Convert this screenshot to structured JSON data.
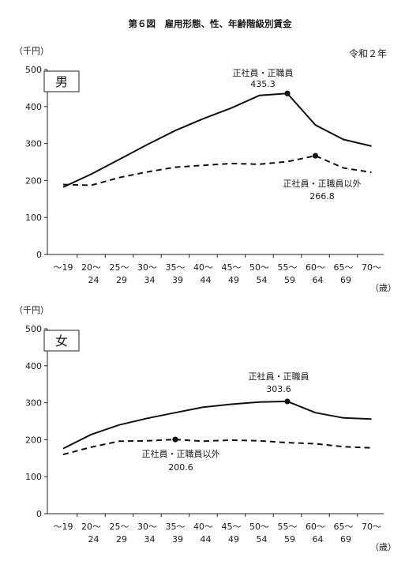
{
  "figure": {
    "title": "第６図　雇用形態、性、年齢階級別賃金",
    "year": "令和２年"
  },
  "chart_data": [
    {
      "type": "line",
      "panel_label": "男",
      "ylabel": "（千円）",
      "xlabel": "（歳）",
      "ylim": [
        0,
        500
      ],
      "yticks": [
        0,
        100,
        200,
        300,
        400,
        500
      ],
      "categories": [
        {
          "line1": "～19",
          "line2": ""
        },
        {
          "line1": "20～",
          "line2": "24"
        },
        {
          "line1": "25～",
          "line2": "29"
        },
        {
          "line1": "30～",
          "line2": "34"
        },
        {
          "line1": "35～",
          "line2": "39"
        },
        {
          "line1": "40～",
          "line2": "44"
        },
        {
          "line1": "45～",
          "line2": "49"
        },
        {
          "line1": "50～",
          "line2": "54"
        },
        {
          "line1": "55～",
          "line2": "59"
        },
        {
          "line1": "60～",
          "line2": "64"
        },
        {
          "line1": "65～",
          "line2": "69"
        },
        {
          "line1": "70～",
          "line2": ""
        }
      ],
      "series": [
        {
          "name": "正社員・正職員",
          "style": "solid",
          "color": "#111111",
          "values": [
            182,
            217,
            257,
            297,
            335,
            367,
            396,
            430,
            435.3,
            350,
            311,
            293
          ],
          "peak_index": 8,
          "peak_label": "435.3"
        },
        {
          "name": "正社員・正職員以外",
          "style": "dashed",
          "color": "#111111",
          "values": [
            189,
            187,
            208,
            223,
            236,
            241,
            246,
            244,
            251,
            266.8,
            234,
            222
          ],
          "peak_index": 9,
          "peak_label": "266.8"
        }
      ]
    },
    {
      "type": "line",
      "panel_label": "女",
      "ylabel": "（千円）",
      "xlabel": "（歳）",
      "ylim": [
        0,
        500
      ],
      "yticks": [
        0,
        100,
        200,
        300,
        400,
        500
      ],
      "categories": [
        {
          "line1": "～19",
          "line2": ""
        },
        {
          "line1": "20～",
          "line2": "24"
        },
        {
          "line1": "25～",
          "line2": "29"
        },
        {
          "line1": "30～",
          "line2": "34"
        },
        {
          "line1": "35～",
          "line2": "39"
        },
        {
          "line1": "40～",
          "line2": "44"
        },
        {
          "line1": "45～",
          "line2": "49"
        },
        {
          "line1": "50～",
          "line2": "54"
        },
        {
          "line1": "55～",
          "line2": "59"
        },
        {
          "line1": "60～",
          "line2": "64"
        },
        {
          "line1": "65～",
          "line2": "69"
        },
        {
          "line1": "70～",
          "line2": ""
        }
      ],
      "series": [
        {
          "name": "正社員・正職員",
          "style": "solid",
          "color": "#111111",
          "values": [
            176,
            214,
            240,
            258,
            273,
            288,
            296,
            302,
            303.6,
            273,
            259,
            256
          ],
          "peak_index": 8,
          "peak_label": "303.6"
        },
        {
          "name": "正社員・正職員以外",
          "style": "dashed",
          "color": "#111111",
          "values": [
            160,
            180,
            196,
            197,
            200.6,
            196,
            199,
            197,
            192,
            189,
            181,
            178
          ],
          "peak_index": 4,
          "peak_label": "200.6"
        }
      ]
    }
  ]
}
